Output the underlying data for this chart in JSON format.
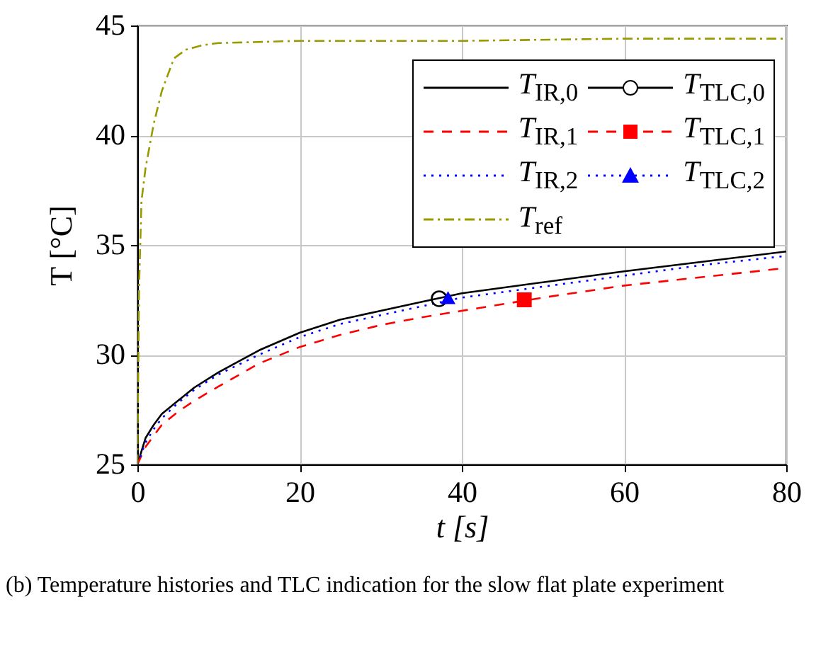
{
  "chart_data": {
    "type": "line",
    "xlabel": "t [s]",
    "ylabel": "T [°C]",
    "xlim": [
      0,
      80
    ],
    "ylim": [
      25,
      45
    ],
    "xticks": [
      0,
      20,
      40,
      60,
      80
    ],
    "yticks": [
      25,
      30,
      35,
      40,
      45
    ],
    "grid": true,
    "legend": "top right",
    "annotations": [
      "(b) Temperature histories and TLC indication for the slow flat plate experiment"
    ],
    "series": [
      {
        "name": "T$_{IR,0}$",
        "color": "#000000",
        "line_style": "solid",
        "x": [
          0,
          1,
          2,
          3,
          5,
          7,
          10,
          15,
          20,
          25,
          30,
          35,
          40,
          50,
          60,
          70,
          80
        ],
        "values": [
          25,
          26.2,
          26.8,
          27.3,
          27.9,
          28.5,
          29.2,
          30.2,
          31.0,
          31.6,
          32.0,
          32.4,
          32.8,
          33.3,
          33.8,
          34.25,
          34.7
        ]
      },
      {
        "name": "T$_{IR,1}$",
        "color": "#ff0000",
        "line_style": "dashed",
        "x": [
          0,
          1,
          2,
          3,
          5,
          7,
          10,
          15,
          20,
          25,
          30,
          35,
          40,
          50,
          60,
          70,
          80
        ],
        "values": [
          25,
          25.8,
          26.3,
          26.8,
          27.4,
          27.9,
          28.55,
          29.6,
          30.35,
          30.9,
          31.35,
          31.7,
          32.0,
          32.6,
          33.15,
          33.55,
          33.95
        ]
      },
      {
        "name": "T$_{IR,2}$",
        "color": "#0000ff",
        "line_style": "dotted",
        "x": [
          0,
          1,
          2,
          3,
          5,
          7,
          10,
          15,
          20,
          25,
          30,
          35,
          40,
          50,
          60,
          70,
          80
        ],
        "values": [
          25,
          26.0,
          26.6,
          27.1,
          27.8,
          28.4,
          29.1,
          30.0,
          30.8,
          31.4,
          31.8,
          32.2,
          32.6,
          33.1,
          33.6,
          34.1,
          34.5
        ]
      },
      {
        "name": "T$_{TLC,0}$",
        "color": "#000000",
        "line_style": "solid",
        "marker": "circle",
        "x": [
          37.2
        ],
        "values": [
          32.55
        ]
      },
      {
        "name": "T$_{TLC,1}$",
        "color": "#ff0000",
        "line_style": "dashed",
        "marker": "square",
        "x": [
          47.7
        ],
        "values": [
          32.5
        ]
      },
      {
        "name": "T$_{TLC,2}$",
        "color": "#0000ff",
        "line_style": "dotted",
        "marker": "triangle",
        "x": [
          38.3
        ],
        "values": [
          32.6
        ]
      },
      {
        "name": "T$_{ref}$",
        "color": "#999900",
        "line_style": "dashdot",
        "x": [
          0,
          0.2,
          0.5,
          1,
          2,
          3,
          4.5,
          6,
          8,
          10,
          20,
          40,
          60,
          80
        ],
        "values": [
          25,
          33,
          37,
          38.5,
          40.5,
          42,
          43.5,
          43.9,
          44.1,
          44.2,
          44.3,
          44.3,
          44.4,
          44.4
        ]
      }
    ]
  }
}
